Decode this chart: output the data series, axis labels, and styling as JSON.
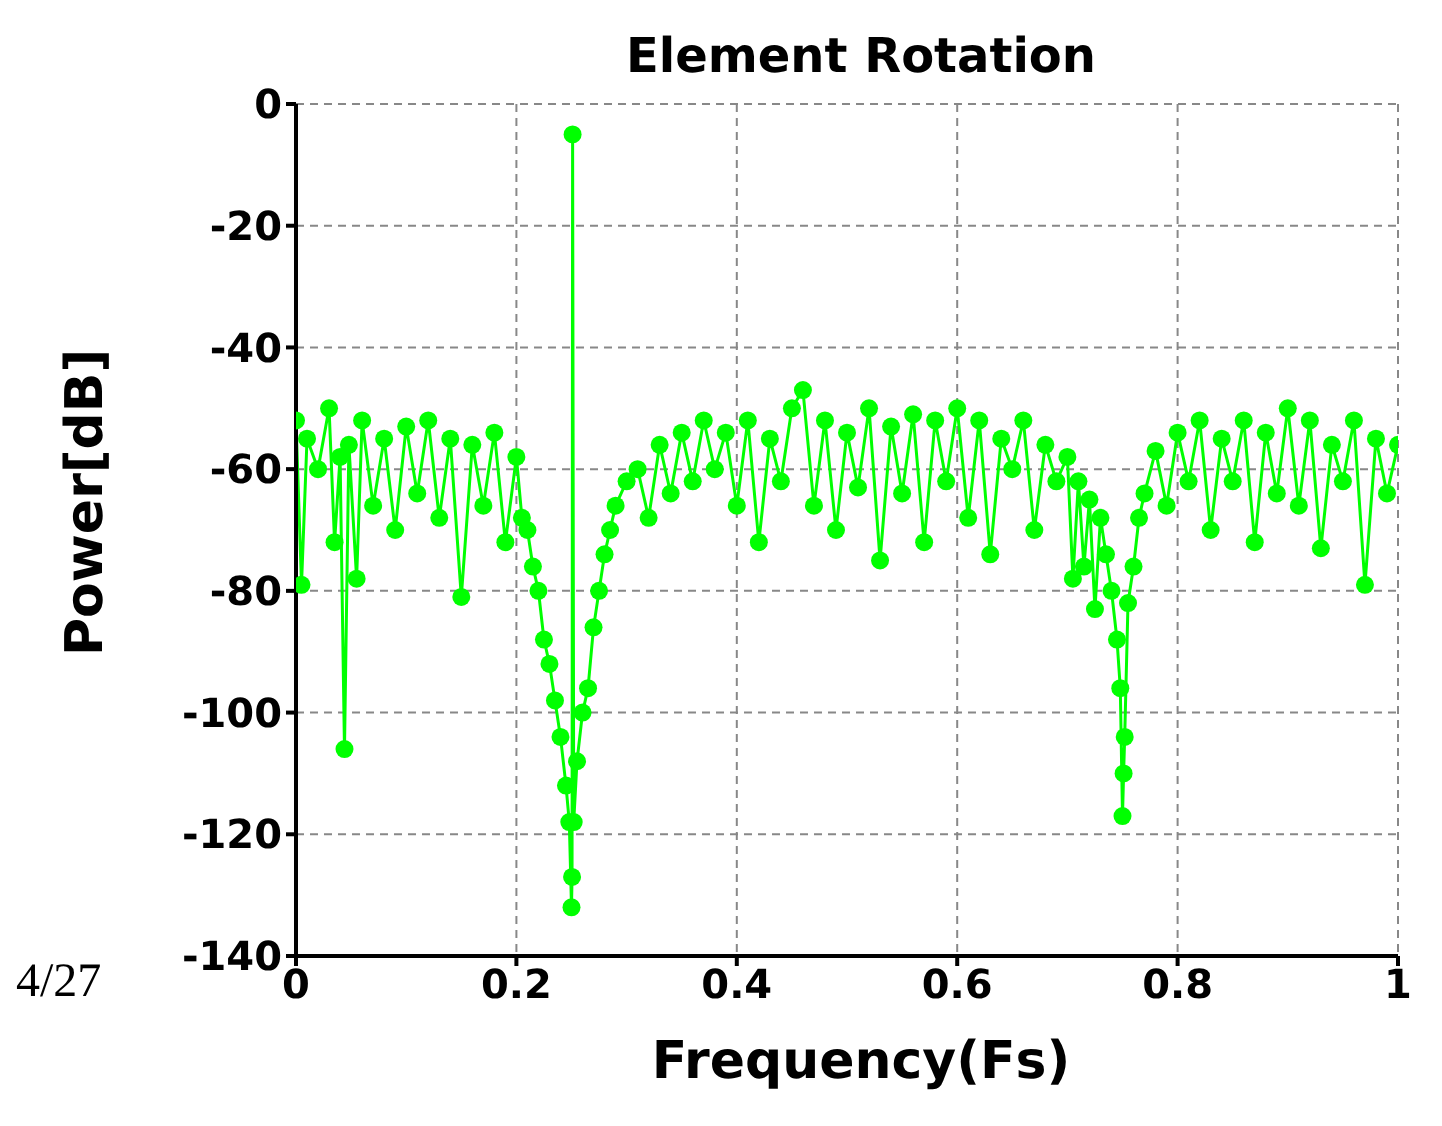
{
  "chart_data": {
    "type": "line",
    "title": "Element Rotation",
    "xlabel": "Frequency(Fs)",
    "ylabel": "Power[dB]",
    "annotations": [
      "4/27"
    ],
    "x": [
      0,
      0.005,
      0.01,
      0.02,
      0.03,
      0.035,
      0.04,
      0.044,
      0.048,
      0.055,
      0.06,
      0.07,
      0.08,
      0.09,
      0.1,
      0.11,
      0.12,
      0.13,
      0.14,
      0.15,
      0.16,
      0.17,
      0.18,
      0.19,
      0.2,
      0.205,
      0.21,
      0.215,
      0.22,
      0.225,
      0.23,
      0.235,
      0.24,
      0.245,
      0.248,
      0.25,
      0.2505,
      0.251,
      0.252,
      0.255,
      0.26,
      0.265,
      0.27,
      0.275,
      0.28,
      0.285,
      0.29,
      0.3,
      0.31,
      0.32,
      0.33,
      0.34,
      0.35,
      0.36,
      0.37,
      0.38,
      0.39,
      0.4,
      0.41,
      0.42,
      0.43,
      0.44,
      0.45,
      0.46,
      0.47,
      0.48,
      0.49,
      0.5,
      0.51,
      0.52,
      0.53,
      0.54,
      0.55,
      0.56,
      0.57,
      0.58,
      0.59,
      0.6,
      0.61,
      0.62,
      0.63,
      0.64,
      0.65,
      0.66,
      0.67,
      0.68,
      0.69,
      0.7,
      0.705,
      0.71,
      0.715,
      0.72,
      0.725,
      0.73,
      0.735,
      0.74,
      0.745,
      0.748,
      0.75,
      0.751,
      0.752,
      0.755,
      0.76,
      0.765,
      0.77,
      0.78,
      0.79,
      0.8,
      0.81,
      0.82,
      0.83,
      0.84,
      0.85,
      0.86,
      0.87,
      0.88,
      0.89,
      0.9,
      0.91,
      0.92,
      0.93,
      0.94,
      0.95,
      0.96,
      0.97,
      0.98,
      0.99,
      1
    ],
    "series": [
      {
        "color": "#00ff00",
        "values": [
          -52,
          -79,
          -55,
          -60,
          -50,
          -72,
          -58,
          -106,
          -56,
          -78,
          -52,
          -66,
          -55,
          -70,
          -53,
          -64,
          -52,
          -68,
          -55,
          -81,
          -56,
          -66,
          -54,
          -72,
          -58,
          -68,
          -70,
          -76,
          -80,
          -88,
          -92,
          -98,
          -104,
          -112,
          -118,
          -132,
          -127,
          -5,
          -118,
          -108,
          -100,
          -96,
          -86,
          -80,
          -74,
          -70,
          -66,
          -62,
          -60,
          -68,
          -56,
          -64,
          -54,
          -62,
          -52,
          -60,
          -54,
          -66,
          -52,
          -72,
          -55,
          -62,
          -50,
          -47,
          -66,
          -52,
          -70,
          -54,
          -63,
          -50,
          -75,
          -53,
          -64,
          -51,
          -72,
          -52,
          -62,
          -50,
          -68,
          -52,
          -74,
          -55,
          -60,
          -52,
          -70,
          -56,
          -62,
          -58,
          -78,
          -62,
          -76,
          -65,
          -83,
          -68,
          -74,
          -80,
          -88,
          -96,
          -117,
          -110,
          -104,
          -82,
          -76,
          -68,
          -64,
          -57,
          -66,
          -54,
          -62,
          -52,
          -70,
          -55,
          -62,
          -52,
          -72,
          -54,
          -64,
          -50,
          -66,
          -52,
          -73,
          -56,
          -62,
          -52,
          -79,
          -55,
          -64,
          -56
        ]
      }
    ],
    "xlim": [
      0,
      1
    ],
    "xticks": [
      0,
      0.2,
      0.4,
      0.6,
      0.8,
      1
    ],
    "ylim": [
      -140,
      0
    ],
    "yticks": [
      -140,
      -120,
      -100,
      -80,
      -60,
      -40,
      -20,
      0
    ],
    "grid": true,
    "marker": "circle",
    "line_style": "solid"
  }
}
